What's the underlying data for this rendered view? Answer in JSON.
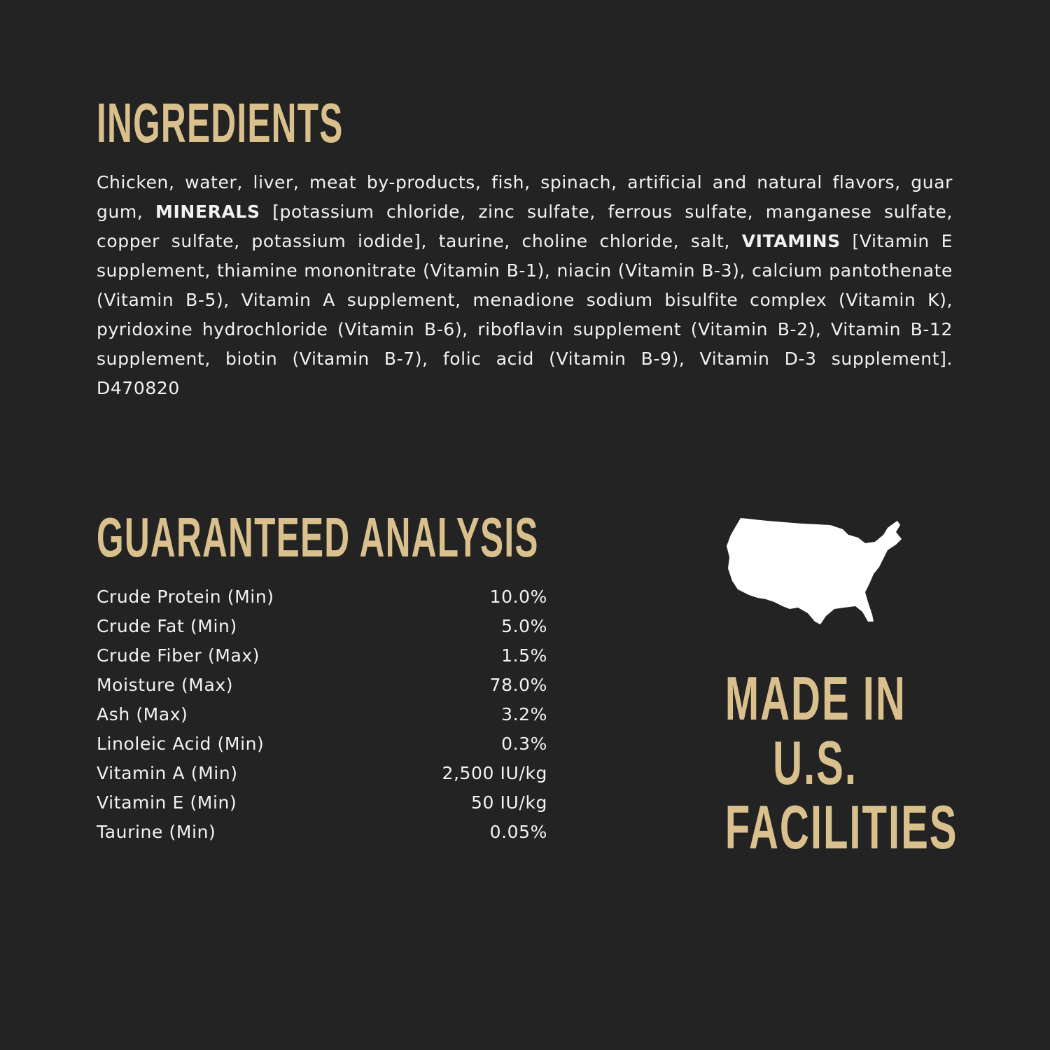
{
  "ingredients": {
    "title": "INGREDIENTS",
    "text_1": "Chicken, water, liver, meat by-products, fish, spinach, artificial and natural flavors, guar gum, ",
    "minerals_label": "MINERALS",
    "text_2": " [potassium chloride, zinc sulfate, ferrous sulfate, manganese sulfate, copper sulfate, potassium iodide], taurine, choline chloride, salt, ",
    "vitamins_label": "VITAMINS",
    "text_3": " [Vitamin E supplement, thiamine mononitrate (Vitamin B-1), niacin (Vitamin B-3), calcium pantothenate (Vitamin B-5), Vitamin A supplement, menadione sodium bisulfite complex (Vitamin K), pyridoxine hydrochloride (Vitamin B-6), riboflavin supplement (Vitamin B-2), Vitamin B-12 supplement, biotin (Vitamin B-7), folic acid (Vitamin B-9), Vitamin D-3 supplement]. D470820"
  },
  "analysis": {
    "title": "GUARANTEED ANALYSIS",
    "rows": [
      {
        "label": "Crude Protein (Min)",
        "value": "10.0%"
      },
      {
        "label": "Crude Fat (Min)",
        "value": "5.0%"
      },
      {
        "label": "Crude Fiber (Max)",
        "value": "1.5%"
      },
      {
        "label": "Moisture (Max)",
        "value": "78.0%"
      },
      {
        "label": "Ash (Max)",
        "value": "3.2%"
      },
      {
        "label": "Linoleic Acid (Min)",
        "value": "0.3%"
      },
      {
        "label": "Vitamin A (Min)",
        "value": "2,500 IU/kg"
      },
      {
        "label": "Vitamin E (Min)",
        "value": "50 IU/kg"
      },
      {
        "label": "Taurine (Min)",
        "value": "0.05%"
      }
    ]
  },
  "made_in": {
    "icon": "usa-map-icon",
    "line_1": "MADE IN",
    "line_2": "U.S.",
    "line_3": "FACILITIES"
  },
  "colors": {
    "background": "#232323",
    "accent": "#d9c08d",
    "text": "#f2f2f2"
  }
}
